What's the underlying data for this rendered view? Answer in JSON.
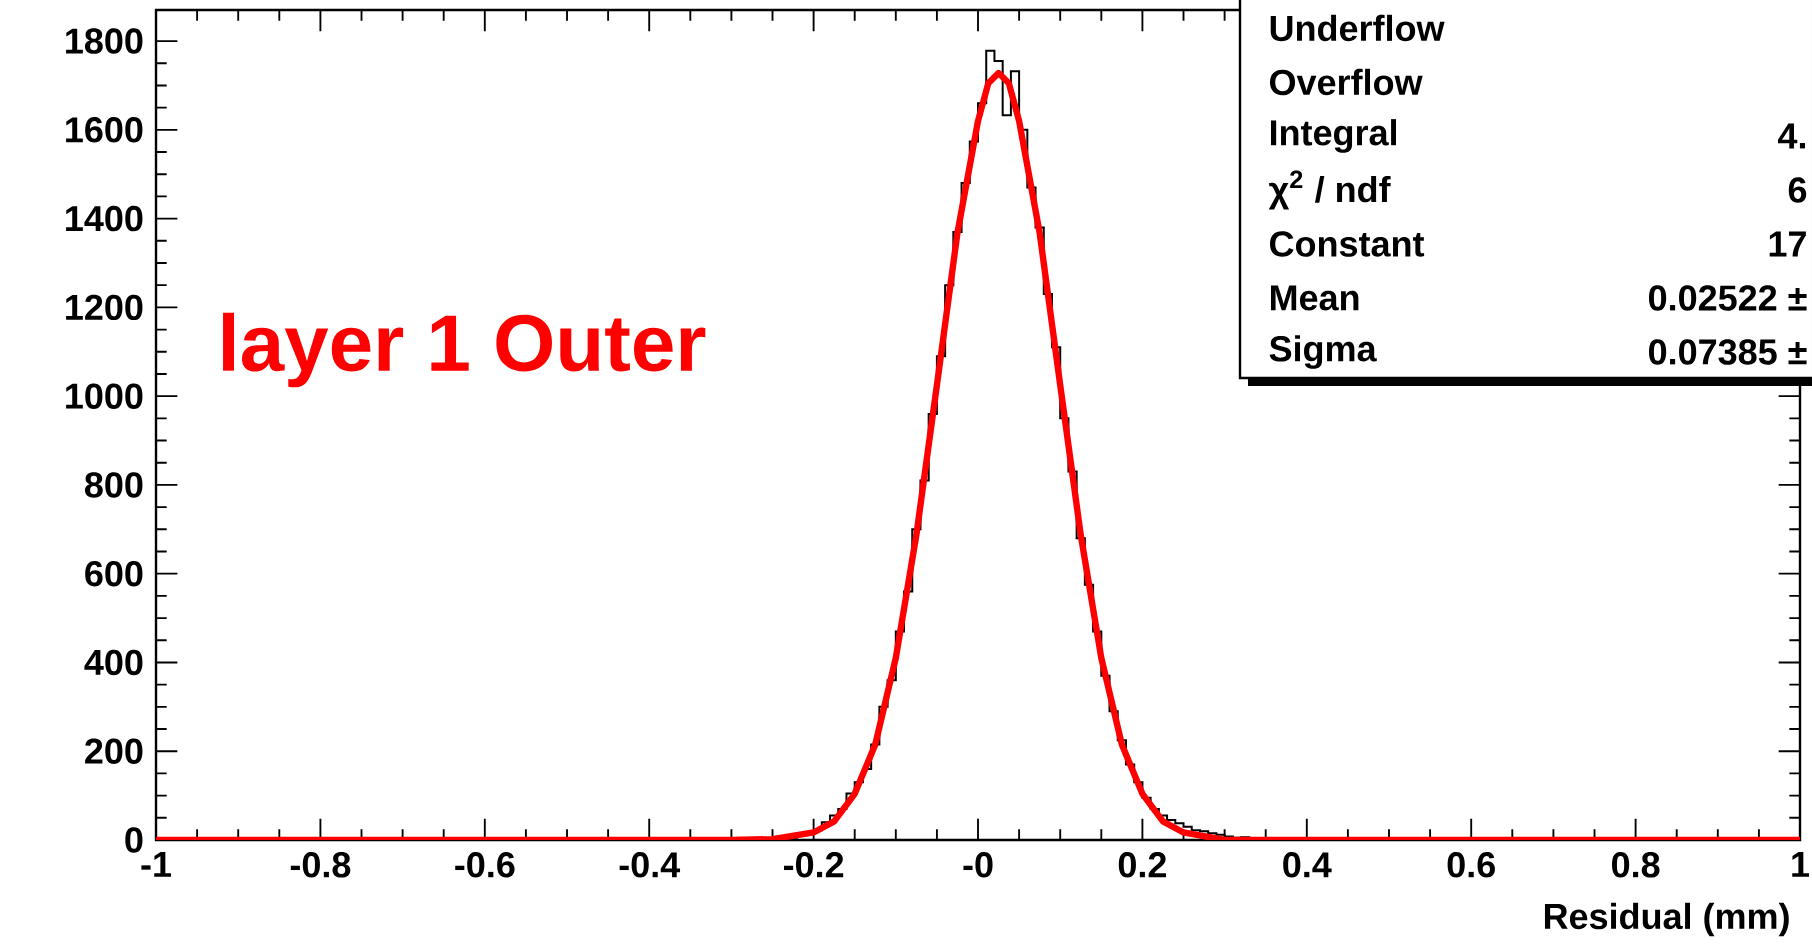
{
  "chart_data": {
    "type": "histogram",
    "xlabel": "Residual (mm)",
    "xlim": [
      -1,
      1
    ],
    "ylim": [
      0,
      1870
    ],
    "xticks": [
      -1,
      -0.8,
      -0.6,
      -0.4,
      -0.2,
      {
        "value": 0,
        "label": "-0"
      },
      0.2,
      0.4,
      0.6,
      0.8,
      1
    ],
    "yticks": [
      0,
      200,
      400,
      600,
      800,
      1000,
      1200,
      1400,
      1600,
      1800
    ],
    "series": [
      {
        "color": "#000000",
        "bins": [
          -1,
          -0.25,
          -0.24,
          -0.23,
          -0.22,
          -0.21,
          -0.2,
          -0.19,
          -0.18,
          -0.17,
          -0.16,
          -0.15,
          -0.14,
          -0.13,
          -0.12,
          -0.11,
          -0.1,
          -0.09,
          -0.08,
          -0.07,
          -0.06,
          -0.05,
          -0.04,
          -0.03,
          -0.02,
          -0.01,
          0,
          0.01,
          0.02,
          0.03,
          0.04,
          0.05,
          0.06,
          0.07,
          0.08,
          0.09,
          0.1,
          0.11,
          0.12,
          0.13,
          0.14,
          0.15,
          0.16,
          0.17,
          0.18,
          0.19,
          0.2,
          0.21,
          0.22,
          0.23,
          0.24,
          0.25,
          0.26,
          0.27,
          0.28,
          0.29,
          0.3,
          0.31,
          0.32,
          0.33,
          0.34,
          0.35,
          1
        ],
        "values": [
          0,
          0,
          2,
          5,
          10,
          18,
          22,
          40,
          55,
          70,
          105,
          130,
          160,
          215,
          300,
          360,
          470,
          560,
          700,
          810,
          960,
          1090,
          1250,
          1370,
          1480,
          1574,
          1660,
          1778,
          1755,
          1633,
          1732,
          1600,
          1470,
          1380,
          1230,
          1110,
          950,
          830,
          680,
          575,
          470,
          370,
          290,
          225,
          170,
          130,
          95,
          70,
          55,
          45,
          38,
          30,
          22,
          20,
          15,
          12,
          8,
          5,
          6,
          2,
          0,
          0
        ]
      },
      {
        "type": "line",
        "color": "#ff0000",
        "x": [
          -1,
          -0.3,
          -0.25,
          -0.2,
          -0.175,
          -0.15,
          -0.125,
          -0.1,
          -0.075,
          -0.05,
          -0.025,
          0,
          0.0125,
          0.025,
          0.0375,
          0.05,
          0.075,
          0.1,
          0.125,
          0.15,
          0.175,
          0.2,
          0.225,
          0.25,
          0.3,
          1
        ],
        "values": [
          0,
          0,
          2,
          17,
          42,
          104,
          215,
          410,
          687,
          1025,
          1368,
          1620,
          1705,
          1728,
          1705,
          1620,
          1368,
          1025,
          687,
          410,
          215,
          104,
          42,
          17,
          0,
          0
        ]
      }
    ],
    "annotations": [
      "layer 1 Outer",
      "Underflow",
      "Overflow",
      "Integral",
      "4.",
      "χ$^{2}$ / ndf",
      "6",
      "Constant",
      "17",
      "Mean",
      "0.02522 ±",
      "Sigma",
      "0.07385 ±"
    ]
  }
}
